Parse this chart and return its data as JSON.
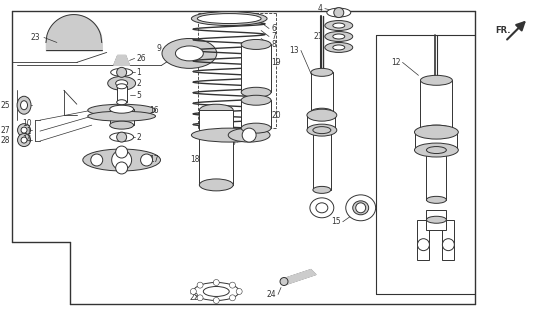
{
  "bg_color": "#ffffff",
  "line_color": "#333333",
  "gray": "#aaaaaa",
  "dgray": "#666666",
  "lgray": "#cccccc",
  "figsize": [
    5.37,
    3.2
  ],
  "dpi": 100
}
